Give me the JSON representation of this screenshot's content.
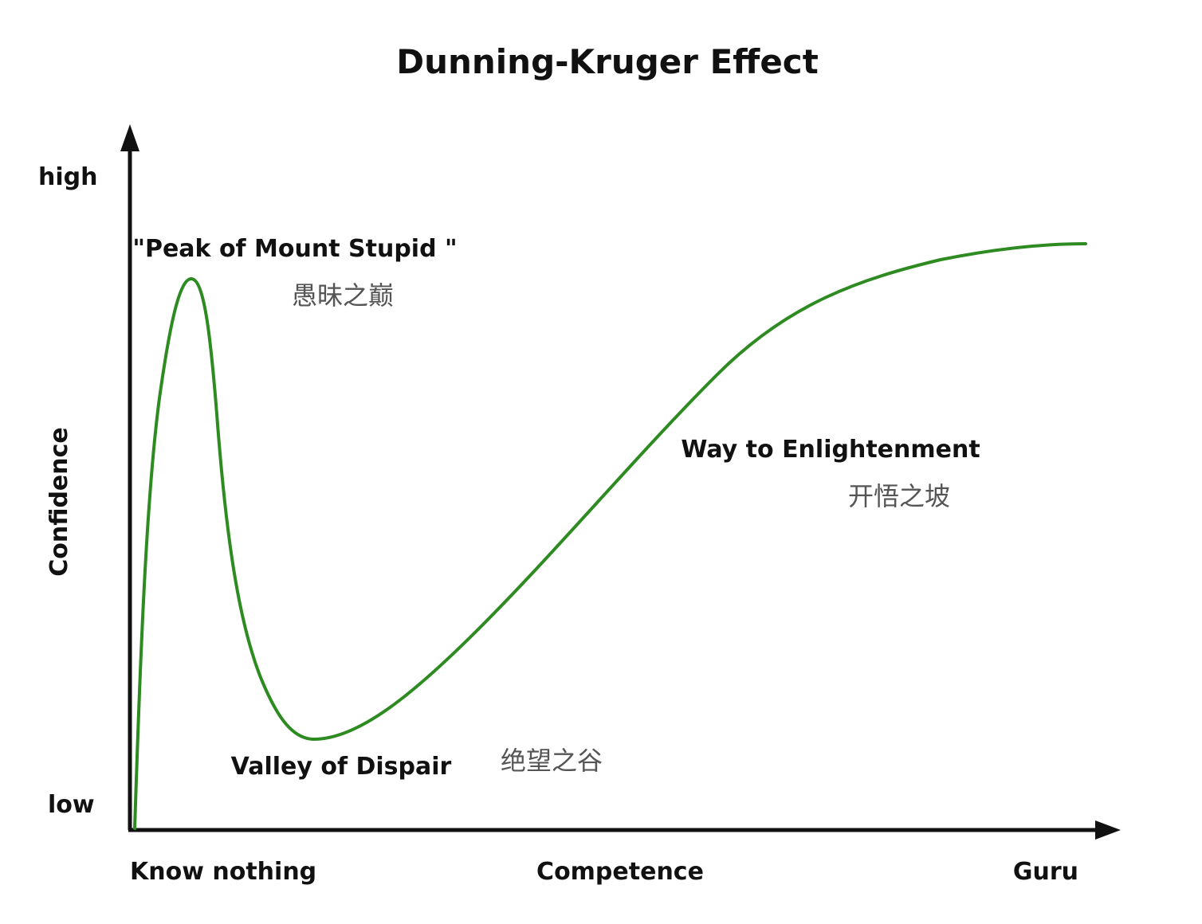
{
  "title": "Dunning-Kruger Effect",
  "y_axis": {
    "label": "Confidence",
    "high_label": "high",
    "low_label": "low"
  },
  "x_axis": {
    "label": "Competence",
    "start_label": "Know nothing",
    "end_label": "Guru"
  },
  "annotations": {
    "peak": "\"Peak of Mount Stupid \"",
    "peak_cn": "愚昧之巅",
    "valley": "Valley of Dispair",
    "valley_cn": "绝望之谷",
    "slope": "Way to Enlightenment",
    "slope_cn": "开悟之坡"
  },
  "colors": {
    "curve": "#2e8b22",
    "axis": "#111111",
    "text": "#111111",
    "chinese_text": "#555555"
  }
}
